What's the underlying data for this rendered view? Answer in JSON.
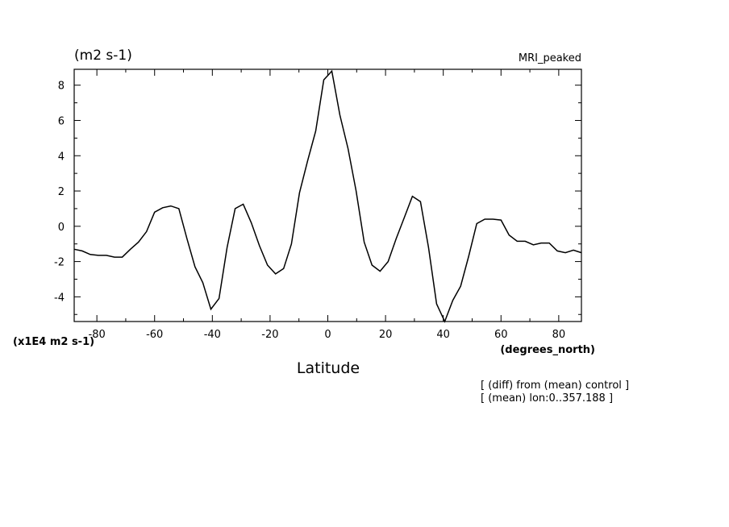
{
  "chart_data": {
    "type": "line",
    "title": "MRI_peaked",
    "ylabel_units": "(m2 s-1)",
    "y_scale_note": "(x1E4 m2 s-1)",
    "xlabel": "Latitude",
    "x_units": "(degrees_north)",
    "annotations": [
      "[ (diff) from (mean) control ]",
      "[ (mean) lon:0..357.188 ]"
    ],
    "xlim": [
      -87.86,
      87.86
    ],
    "ylim": [
      -5.4,
      8.9
    ],
    "x_ticks": [
      -80,
      -60,
      -40,
      -20,
      0,
      20,
      40,
      60,
      80
    ],
    "x_tick_labels": [
      "-80",
      "-60",
      "-40",
      "-20",
      "0",
      "20",
      "40",
      "60",
      "80"
    ],
    "y_ticks": [
      -4,
      -2,
      0,
      2,
      4,
      6,
      8
    ],
    "y_tick_labels": [
      "-4",
      "-2",
      "0",
      "2",
      "4",
      "6",
      "8"
    ],
    "grid": false,
    "series": [
      {
        "color": "#000000",
        "x": [
          -87.86,
          -85.1,
          -82.3,
          -79.5,
          -76.7,
          -73.9,
          -71.2,
          -68.4,
          -65.6,
          -62.8,
          -60.0,
          -57.2,
          -54.4,
          -51.6,
          -48.8,
          -46.0,
          -43.3,
          -40.5,
          -37.7,
          -34.9,
          -32.1,
          -29.3,
          -26.5,
          -23.7,
          -20.9,
          -18.1,
          -15.3,
          -12.6,
          -9.8,
          -7.0,
          -4.2,
          -1.4,
          1.4,
          4.2,
          7.0,
          9.8,
          12.6,
          15.3,
          18.1,
          20.9,
          23.7,
          26.5,
          29.3,
          32.1,
          34.9,
          37.7,
          40.5,
          43.3,
          46.0,
          48.8,
          51.6,
          54.4,
          57.2,
          60.0,
          62.8,
          65.6,
          68.4,
          71.2,
          73.9,
          76.7,
          79.5,
          82.3,
          85.1,
          87.86
        ],
        "values": [
          -1.3,
          -1.4,
          -1.6,
          -1.65,
          -1.65,
          -1.75,
          -1.75,
          -1.3,
          -0.9,
          -0.3,
          0.8,
          1.05,
          1.15,
          1.0,
          -0.7,
          -2.3,
          -3.2,
          -4.7,
          -4.1,
          -1.2,
          1.0,
          1.25,
          0.2,
          -1.1,
          -2.2,
          -2.7,
          -2.4,
          -1.0,
          1.9,
          3.7,
          5.4,
          8.3,
          8.8,
          6.3,
          4.4,
          2.0,
          -0.9,
          -2.2,
          -2.55,
          -2.0,
          -0.7,
          0.5,
          1.7,
          1.4,
          -1.2,
          -4.4,
          -5.4,
          -4.2,
          -3.4,
          -1.7,
          0.15,
          0.4,
          0.4,
          0.35,
          -0.5,
          -0.85,
          -0.85,
          -1.05,
          -0.95,
          -0.95,
          -1.4,
          -1.5,
          -1.35,
          -1.5
        ]
      }
    ]
  }
}
